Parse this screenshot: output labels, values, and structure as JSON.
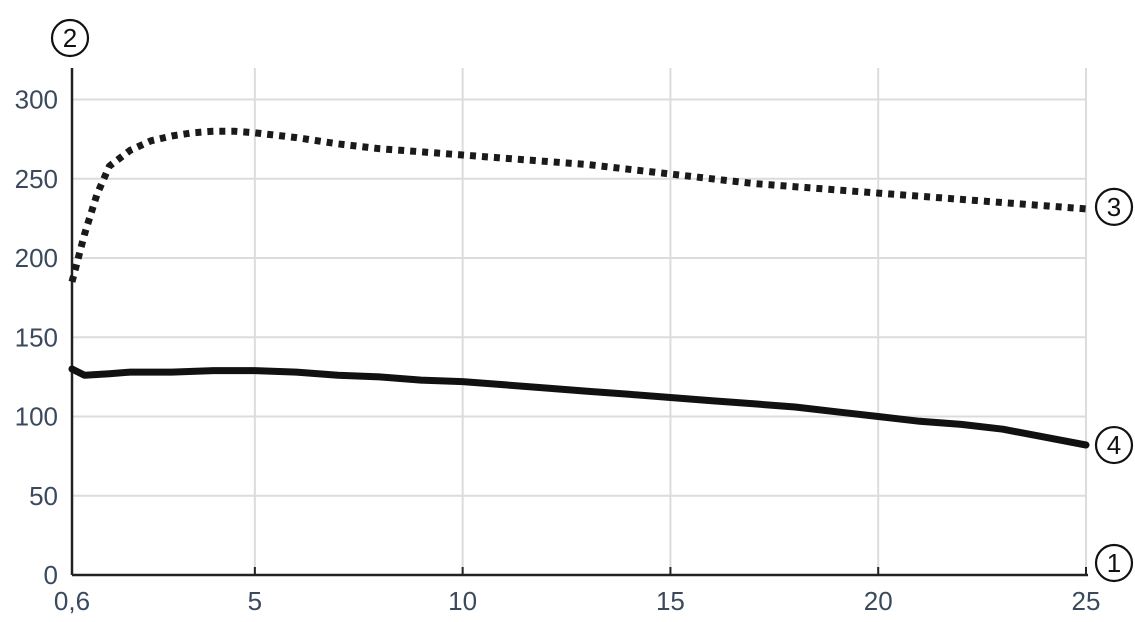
{
  "chart_data": {
    "type": "line",
    "title": "",
    "xlabel": "",
    "ylabel": "",
    "xlim": [
      0.6,
      25
    ],
    "ylim": [
      0,
      330
    ],
    "grid": true,
    "x_ticks": [
      {
        "value": 0.6,
        "label": "0,6"
      },
      {
        "value": 5,
        "label": "5"
      },
      {
        "value": 10,
        "label": "10"
      },
      {
        "value": 15,
        "label": "15"
      },
      {
        "value": 20,
        "label": "20"
      },
      {
        "value": 25,
        "label": "25"
      }
    ],
    "y_ticks": [
      {
        "value": 0,
        "label": "0"
      },
      {
        "value": 50,
        "label": "50"
      },
      {
        "value": 100,
        "label": "100"
      },
      {
        "value": 150,
        "label": "150"
      },
      {
        "value": 200,
        "label": "200"
      },
      {
        "value": 250,
        "label": "250"
      },
      {
        "value": 300,
        "label": "300"
      }
    ],
    "series": [
      {
        "style": "dotted",
        "color": "#1a1a1a",
        "x": [
          0.6,
          0.9,
          1.2,
          1.5,
          2.0,
          2.5,
          3.0,
          3.5,
          4.0,
          4.5,
          5.0,
          6.0,
          7.0,
          8.0,
          9.0,
          10.0,
          11.0,
          12.0,
          13.0,
          14.0,
          15.0,
          16.0,
          17.0,
          18.0,
          19.0,
          20.0,
          21.0,
          22.0,
          23.0,
          24.0,
          25.0
        ],
        "y": [
          185,
          215,
          240,
          258,
          268,
          274,
          277,
          279,
          280,
          280,
          279,
          276,
          272,
          269,
          267,
          265,
          263,
          261,
          259,
          256,
          253,
          250,
          247,
          245,
          243,
          241,
          239,
          237,
          235,
          233,
          231
        ]
      },
      {
        "style": "solid",
        "color": "#111111",
        "x": [
          0.6,
          0.9,
          1.5,
          2.0,
          3.0,
          4.0,
          5.0,
          6.0,
          7.0,
          8.0,
          9.0,
          10.0,
          11.0,
          12.0,
          13.0,
          14.0,
          15.0,
          16.0,
          17.0,
          18.0,
          19.0,
          20.0,
          21.0,
          22.0,
          23.0,
          24.0,
          25.0
        ],
        "y": [
          130,
          126,
          127,
          128,
          128,
          129,
          129,
          128,
          126,
          125,
          123,
          122,
          120,
          118,
          116,
          114,
          112,
          110,
          108,
          106,
          103,
          100,
          97,
          95,
          92,
          87,
          82
        ]
      }
    ],
    "callouts": [
      {
        "label": "1",
        "target": "x-axis"
      },
      {
        "label": "2",
        "target": "y-axis"
      },
      {
        "label": "3",
        "target": "series-1"
      },
      {
        "label": "4",
        "target": "series-2"
      }
    ]
  }
}
